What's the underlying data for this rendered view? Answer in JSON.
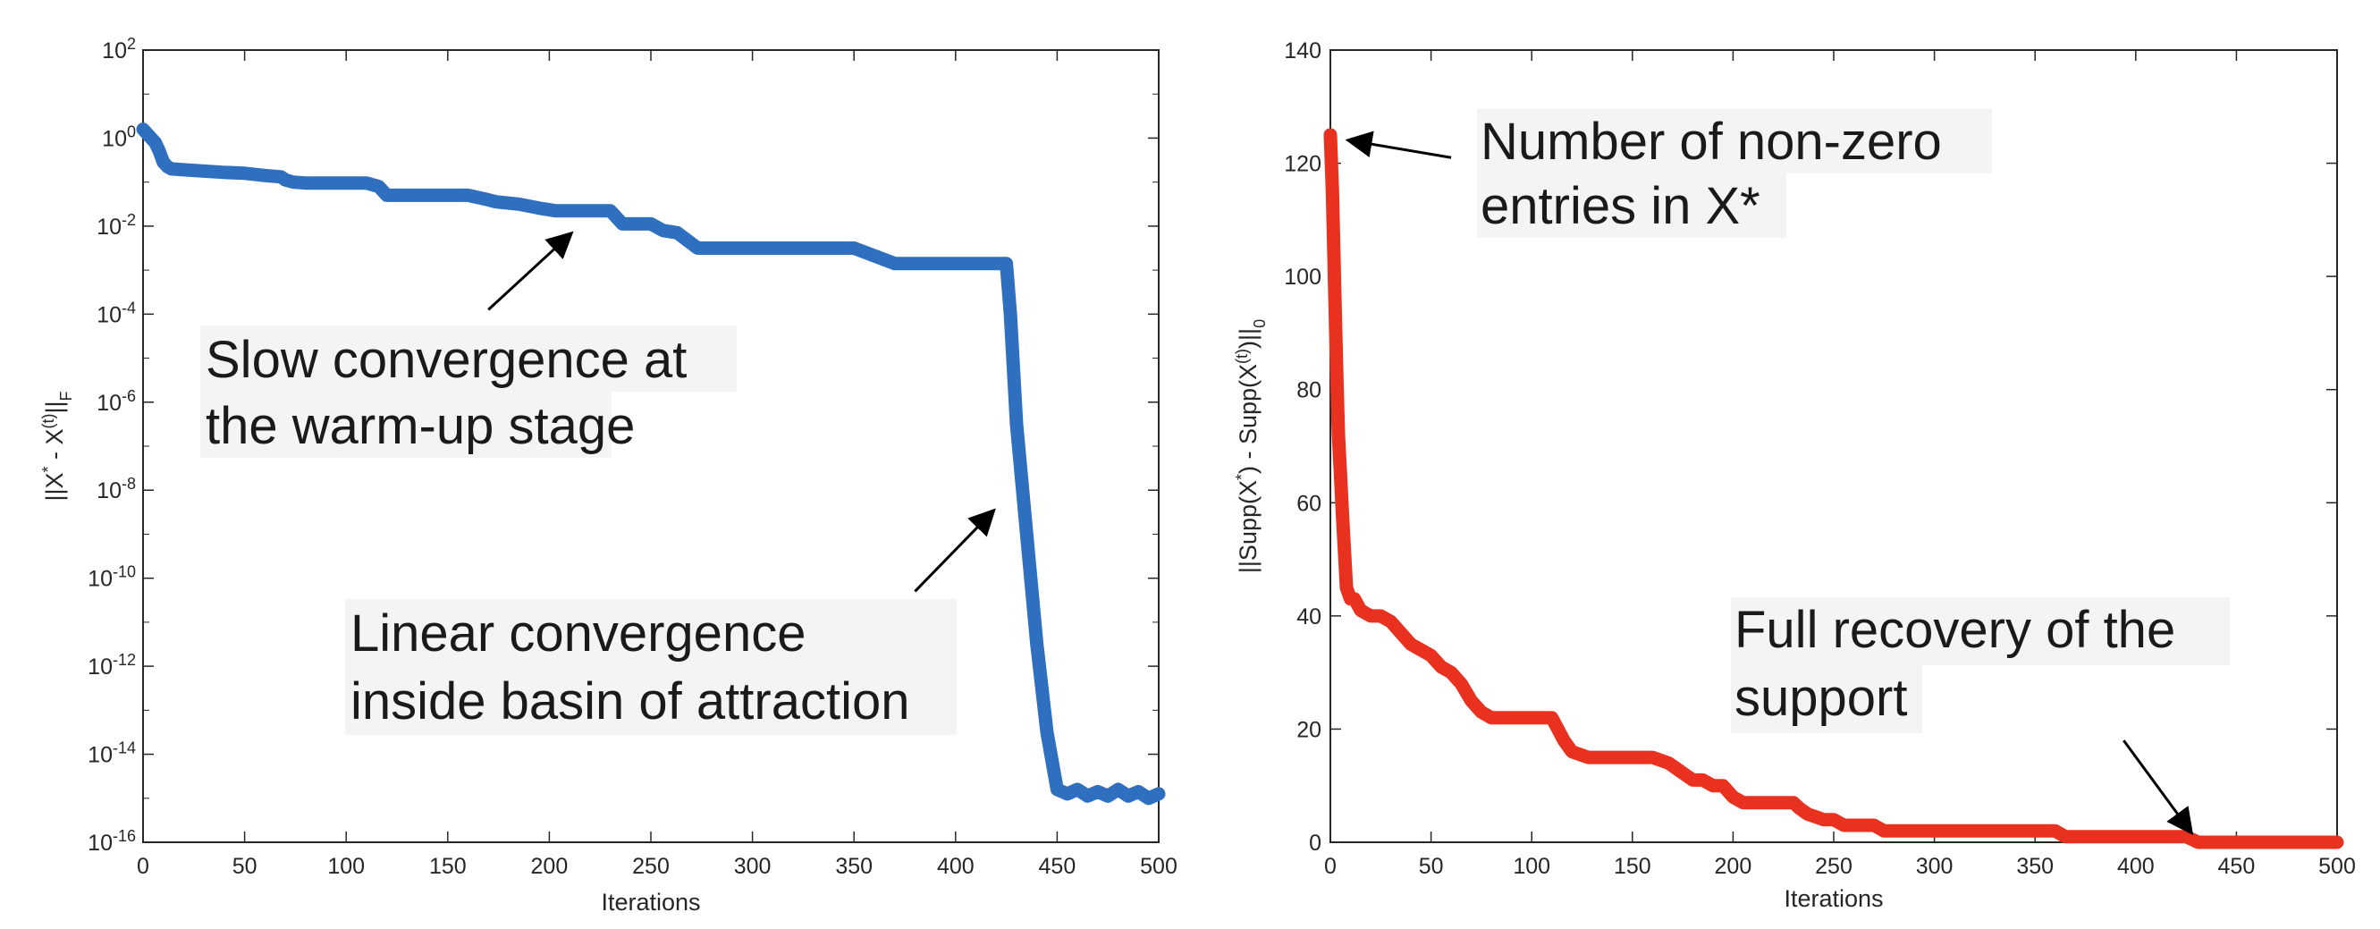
{
  "chart_data": [
    {
      "id": "left",
      "type": "line",
      "xscale": "linear",
      "yscale": "log",
      "xlabel": "Iterations",
      "ylabel": "||X* - X(t)||F",
      "ylabel_parts": {
        "open": "||X",
        "sup1": "*",
        "mid": " - X",
        "sup2": "(t)",
        "close": "||",
        "sub": "F"
      },
      "xlim": [
        0,
        500
      ],
      "ylim_exp": [
        -16,
        2
      ],
      "xticks": [
        0,
        50,
        100,
        150,
        200,
        250,
        300,
        350,
        400,
        450,
        500
      ],
      "xtick_labels": [
        "0",
        "50",
        "100",
        "150",
        "200",
        "250",
        "300",
        "350",
        "400",
        "450",
        "500"
      ],
      "yticks_exp": [
        2,
        0,
        -2,
        -4,
        -6,
        -8,
        -10,
        -12,
        -14,
        -16
      ],
      "ytick_base": "10",
      "ytick_exp_labels": [
        "2",
        "0",
        "-2",
        "-4",
        "-6",
        "-8",
        "-10",
        "-12",
        "-14",
        "-16"
      ],
      "series": [
        {
          "name": "distance",
          "color": "#2e6fc0",
          "x": [
            0,
            3,
            6,
            8,
            10,
            12,
            14,
            20,
            30,
            40,
            50,
            60,
            68,
            70,
            74,
            80,
            90,
            100,
            110,
            116,
            120,
            130,
            140,
            150,
            160,
            168,
            174,
            185,
            196,
            203,
            210,
            230,
            236,
            250,
            256,
            263,
            273,
            278,
            310,
            350,
            370,
            374,
            400,
            425,
            427,
            430,
            435,
            440,
            445,
            450,
            455,
            460,
            465,
            470,
            475,
            480,
            485,
            490,
            495,
            500
          ],
          "y_exp": [
            0.2,
            0.05,
            -0.1,
            -0.3,
            -0.55,
            -0.65,
            -0.7,
            -0.72,
            -0.75,
            -0.78,
            -0.8,
            -0.85,
            -0.88,
            -0.95,
            -1.0,
            -1.02,
            -1.02,
            -1.02,
            -1.02,
            -1.1,
            -1.3,
            -1.3,
            -1.3,
            -1.3,
            -1.3,
            -1.38,
            -1.45,
            -1.5,
            -1.6,
            -1.65,
            -1.65,
            -1.65,
            -1.95,
            -1.95,
            -2.1,
            -2.15,
            -2.5,
            -2.5,
            -2.5,
            -2.5,
            -2.85,
            -2.85,
            -2.85,
            -2.85,
            -4.0,
            -6.5,
            -9.0,
            -11.5,
            -13.5,
            -14.8,
            -14.9,
            -14.8,
            -14.95,
            -14.85,
            -14.95,
            -14.8,
            -14.95,
            -14.85,
            -15.0,
            -14.9
          ]
        }
      ],
      "annotations": [
        {
          "lines": [
            "Slow convergence at",
            "the warm-up stage"
          ],
          "arrow_to": {
            "x": 210,
            "y_exp": -2.2
          },
          "arrow_from": {
            "x": 170,
            "y_exp": -3.9
          }
        },
        {
          "lines": [
            "Linear convergence ",
            "inside basin of attraction"
          ],
          "arrow_to": {
            "x": 418,
            "y_exp": -8.5
          },
          "arrow_from": {
            "x": 380,
            "y_exp": -10.3
          }
        }
      ]
    },
    {
      "id": "right",
      "type": "line",
      "xscale": "linear",
      "yscale": "linear",
      "xlabel": "Iterations",
      "ylabel": "||Supp(X*) - Supp(X(t))||0",
      "ylabel_parts": {
        "open": "||Supp(X",
        "sup1": "*",
        "mid": ") - Supp(X",
        "sup2": "(t)",
        "close": ")||",
        "sub": "0"
      },
      "xlim": [
        0,
        500
      ],
      "ylim": [
        0,
        140
      ],
      "xticks": [
        0,
        50,
        100,
        150,
        200,
        250,
        300,
        350,
        400,
        450,
        500
      ],
      "xtick_labels": [
        "0",
        "50",
        "100",
        "150",
        "200",
        "250",
        "300",
        "350",
        "400",
        "450",
        "500"
      ],
      "yticks": [
        0,
        20,
        40,
        60,
        80,
        100,
        120,
        140
      ],
      "ytick_labels": [
        "0",
        "20",
        "40",
        "60",
        "80",
        "100",
        "120",
        "140"
      ],
      "series": [
        {
          "name": "support_error",
          "color": "#e8311f",
          "x": [
            0,
            1,
            2,
            3,
            4,
            5,
            6,
            8,
            10,
            12,
            15,
            20,
            25,
            30,
            35,
            40,
            45,
            50,
            55,
            60,
            65,
            70,
            75,
            80,
            90,
            100,
            110,
            113,
            116,
            120,
            128,
            135,
            150,
            160,
            168,
            172,
            176,
            180,
            185,
            190,
            195,
            200,
            205,
            210,
            225,
            230,
            233,
            237,
            245,
            250,
            255,
            260,
            270,
            275,
            300,
            330,
            360,
            365,
            370,
            400,
            425,
            428,
            431,
            435,
            450,
            470,
            500
          ],
          "y": [
            125,
            115,
            100,
            85,
            72,
            65,
            58,
            45,
            43,
            43,
            41,
            40,
            40,
            39,
            37,
            35,
            34,
            33,
            31,
            30,
            28,
            25,
            23,
            22,
            22,
            22,
            22,
            20,
            18,
            16,
            15,
            15,
            15,
            15,
            14,
            13,
            12,
            11,
            11,
            10,
            10,
            8,
            7,
            7,
            7,
            7,
            6,
            5,
            4,
            4,
            3,
            3,
            3,
            2,
            2,
            2,
            2,
            1,
            1,
            1,
            1,
            0.5,
            0,
            0,
            0,
            0,
            0
          ]
        }
      ],
      "annotations": [
        {
          "lines": [
            "Number of non-zero",
            "entries in X*"
          ],
          "arrow_to": {
            "x": 10,
            "y": 124
          },
          "arrow_from": {
            "x": 60,
            "y": 121
          }
        },
        {
          "lines": [
            "Full recovery of the",
            "support"
          ],
          "arrow_to": {
            "x": 427,
            "y": 2
          },
          "arrow_from": {
            "x": 394,
            "y": 18
          }
        }
      ]
    }
  ]
}
